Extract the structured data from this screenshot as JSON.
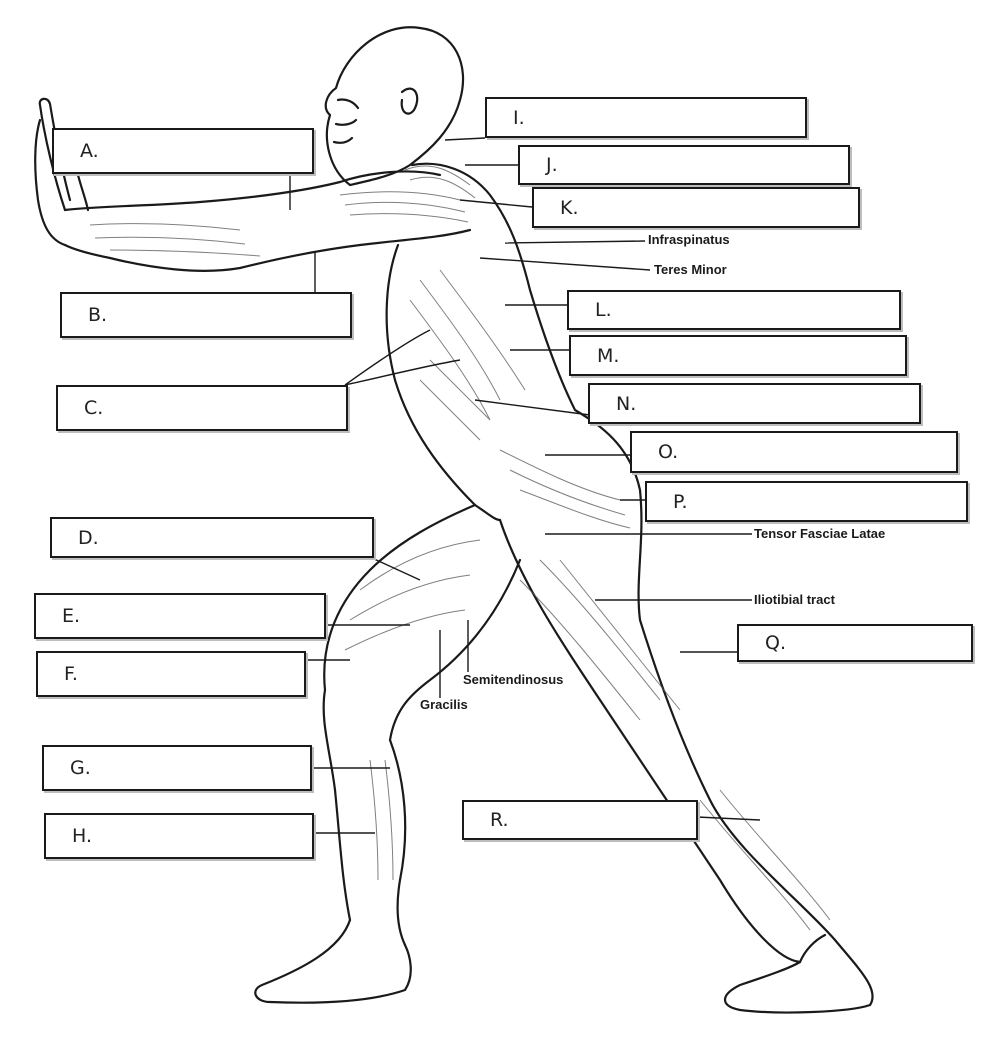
{
  "label_boxes": {
    "A": "A.",
    "B": "B.",
    "C": "C.",
    "D": "D.",
    "E": "E.",
    "F": "F.",
    "G": "G.",
    "H": "H.",
    "I": "I.",
    "J": "J.",
    "K": "K.",
    "L": "L.",
    "M": "M.",
    "N": "N.",
    "O": "O.",
    "P": "P.",
    "Q": "Q.",
    "R": "R."
  },
  "printed_terms": {
    "infraspinatus": "Infraspinatus",
    "teres_minor": "Teres Minor",
    "tensor_fasciae_latae": "Tensor Fasciae Latae",
    "iliotibial_tract": "Iliotibial tract",
    "semitendinosus": "Semitendinosus",
    "gracilis": "Gracilis"
  },
  "colors": {
    "line": "#1a1a1a",
    "box_border": "#1a1a1a",
    "box_fill": "#ffffff"
  }
}
